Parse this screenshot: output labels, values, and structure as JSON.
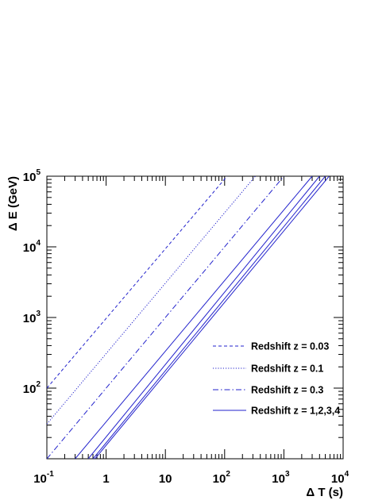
{
  "chart_data": {
    "type": "line",
    "xlabel": "Δ T (s)",
    "ylabel": "Δ E (GeV)",
    "x_scale": "log",
    "y_scale": "log",
    "xlim": [
      0.1,
      10000
    ],
    "ylim": [
      10,
      100000
    ],
    "grid": false,
    "legend_position": "bottom-right",
    "x_ticks": [
      {
        "base": "10",
        "exp": "-1"
      },
      {
        "base": "1",
        "exp": ""
      },
      {
        "base": "10",
        "exp": ""
      },
      {
        "base": "10",
        "exp": "2"
      },
      {
        "base": "10",
        "exp": "3"
      },
      {
        "base": "10",
        "exp": "4"
      }
    ],
    "y_ticks": [
      {
        "base": "10",
        "exp": "2"
      },
      {
        "base": "10",
        "exp": "3"
      },
      {
        "base": "10",
        "exp": "4"
      },
      {
        "base": "10",
        "exp": "5"
      }
    ],
    "legend": [
      {
        "label": "Redshift z = 0.03",
        "style": "dashed"
      },
      {
        "label": "Redshift z = 0.1",
        "style": "dotted"
      },
      {
        "label": "Redshift z = 0.3",
        "style": "dashdot"
      },
      {
        "label": "Redshift z = 1,2,3,4",
        "style": "solid"
      }
    ],
    "series": [
      {
        "style": "dashed",
        "color": "#2222cc",
        "x": [
          0.1,
          110
        ],
        "y": [
          100,
          100000
        ]
      },
      {
        "style": "dotted",
        "color": "#2222cc",
        "x": [
          0.1,
          330
        ],
        "y": [
          31,
          100000
        ]
      },
      {
        "style": "dashdot",
        "color": "#2222cc",
        "x": [
          0.1,
          1000
        ],
        "y": [
          10,
          100000
        ]
      },
      {
        "style": "solid",
        "color": "#2222cc",
        "x": [
          0.3,
          3000
        ],
        "y": [
          10,
          100000
        ]
      },
      {
        "style": "solid",
        "color": "#2222cc",
        "x": [
          0.5,
          4000
        ],
        "y": [
          10,
          100000
        ]
      },
      {
        "style": "solid",
        "color": "#2222cc",
        "x": [
          0.6,
          5000
        ],
        "y": [
          10,
          100000
        ]
      },
      {
        "style": "solid",
        "color": "#2222cc",
        "x": [
          0.65,
          5800
        ],
        "y": [
          10,
          100000
        ]
      }
    ]
  }
}
